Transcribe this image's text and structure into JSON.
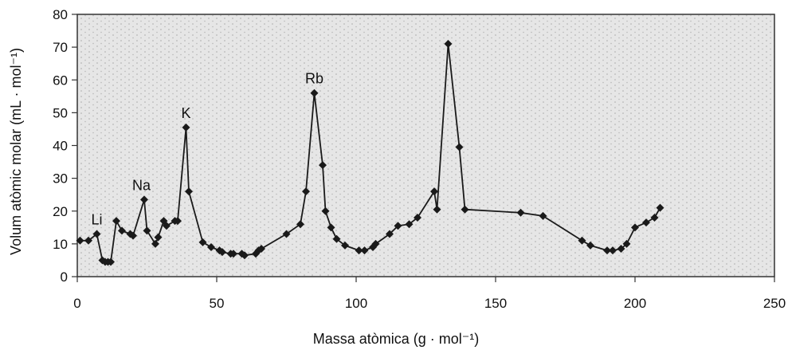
{
  "chart_data": {
    "type": "line",
    "title": "",
    "xlabel": "Massa atòmica (g · mol⁻¹)",
    "ylabel": "Volum atòmic molar (mL · mol⁻¹)",
    "xlim": [
      0,
      250
    ],
    "ylim": [
      0,
      80
    ],
    "x_ticks": [
      0,
      50,
      100,
      150,
      200,
      250
    ],
    "y_ticks": [
      0,
      10,
      20,
      30,
      40,
      50,
      60,
      70,
      80
    ],
    "grid": false,
    "background": "dotted-gray",
    "colors": {
      "line": "#1a1a1a",
      "marker": "#1a1a1a",
      "plot_bg": "#e6e6e6"
    },
    "series": [
      {
        "x": [
          1,
          4,
          7,
          9,
          10,
          11,
          12,
          14,
          16,
          19,
          20,
          24,
          25,
          28,
          29,
          31,
          32,
          35,
          36,
          39,
          40,
          45,
          48,
          51,
          52,
          55,
          56,
          59,
          60,
          64,
          65,
          66,
          75,
          80,
          82,
          85,
          88,
          89,
          91,
          93,
          96,
          101,
          103,
          106,
          107,
          112,
          115,
          119,
          122,
          128,
          129,
          133,
          137,
          139,
          159,
          167,
          181,
          184,
          190,
          192,
          195,
          197,
          200,
          204,
          207,
          209
        ],
        "y": [
          11,
          11,
          13,
          5,
          4.5,
          4.5,
          4.5,
          17,
          14,
          13,
          12.5,
          23.5,
          14,
          10,
          12,
          17,
          15.5,
          17,
          17,
          45.5,
          26,
          10.5,
          9,
          8,
          7.5,
          7,
          7,
          7,
          6.5,
          7,
          8,
          8.5,
          13,
          16,
          26,
          56,
          34,
          20,
          15,
          11.5,
          9.5,
          8,
          8,
          9,
          10,
          13,
          15.5,
          16,
          18,
          26,
          20.5,
          71,
          39.5,
          20.5,
          19.5,
          18.5,
          11,
          9.5,
          8,
          8,
          8.5,
          10,
          15,
          16.5,
          18,
          21
        ]
      }
    ],
    "annotations": [
      {
        "text": "Li",
        "x": 7,
        "y": 13
      },
      {
        "text": "Na",
        "x": 23,
        "y": 23.5
      },
      {
        "text": "K",
        "x": 39,
        "y": 45.5
      },
      {
        "text": "Rb",
        "x": 85,
        "y": 56
      }
    ]
  }
}
